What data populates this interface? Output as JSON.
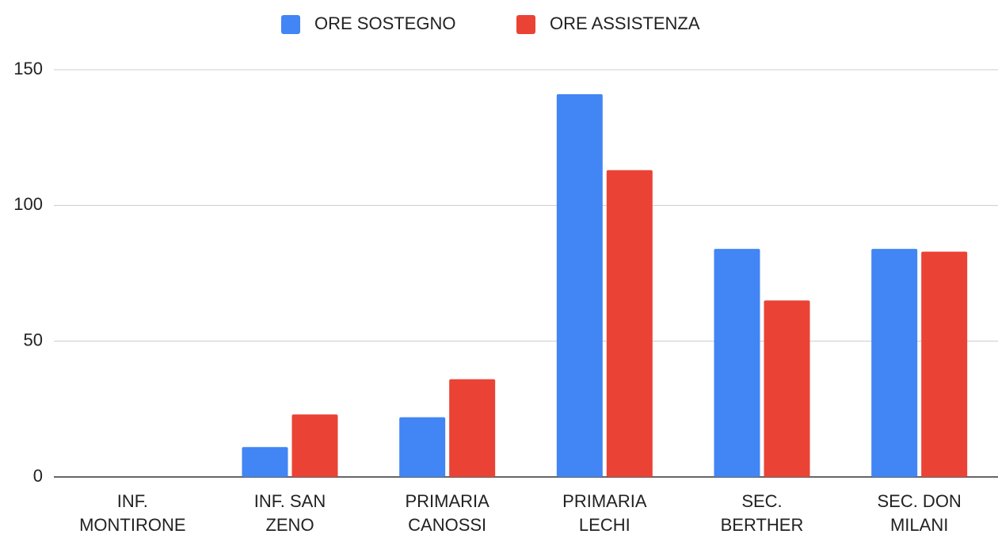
{
  "chart_data": {
    "type": "bar",
    "categories": [
      "INF. MONTIRONE",
      "INF. SAN ZENO",
      "PRIMARIA CANOSSI",
      "PRIMARIA LECHI",
      "SEC. BERTHER",
      "SEC. DON MILANI"
    ],
    "series": [
      {
        "name": "ORE SOSTEGNO",
        "color": "#4285f4",
        "values": [
          0,
          11,
          22,
          141,
          84,
          84
        ]
      },
      {
        "name": "ORE ASSISTENZA",
        "color": "#ea4335",
        "values": [
          0,
          23,
          36,
          113,
          65,
          83
        ]
      }
    ],
    "ylim": [
      0,
      150
    ],
    "yticks": [
      0,
      50,
      100,
      150
    ],
    "grid": true,
    "legend": "top"
  }
}
